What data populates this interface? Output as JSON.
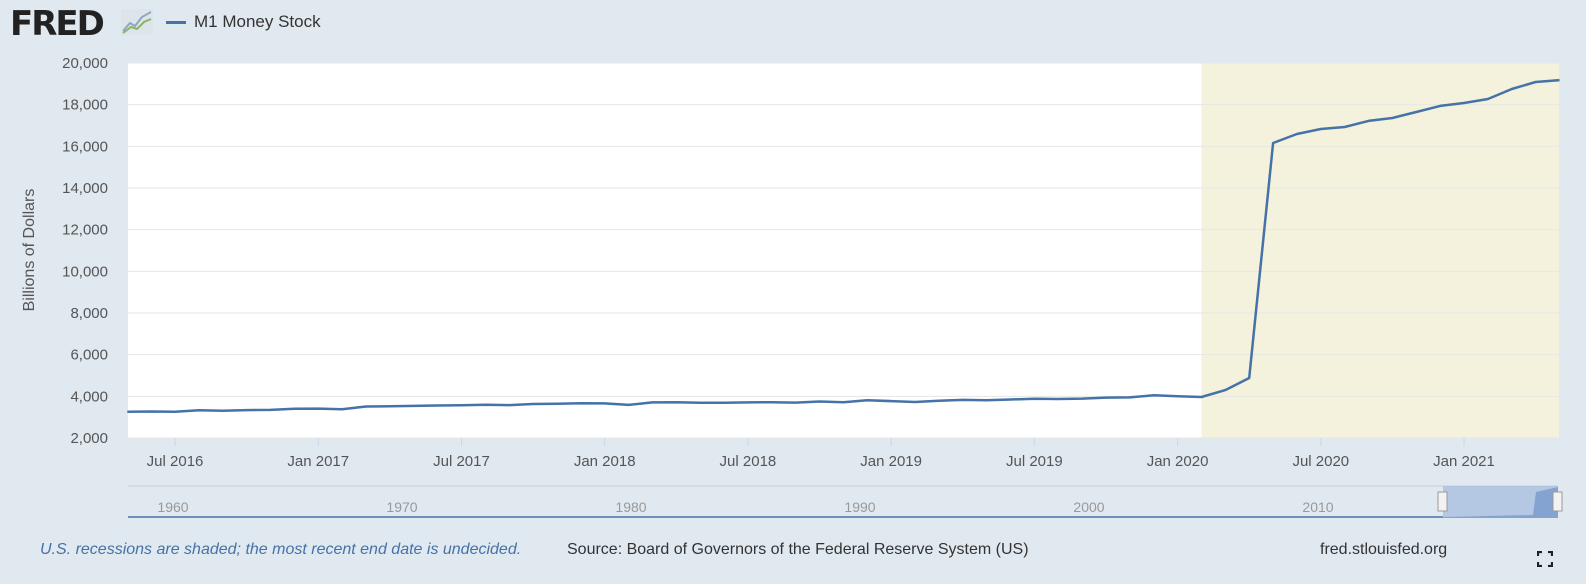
{
  "header": {
    "logo": "FRED",
    "logo_icon": "chart-line-icon",
    "legend": "M1 Money Stock"
  },
  "footer": {
    "note": "U.S. recessions are shaded; the most recent end date is undecided.",
    "source": "Source: Board of Governors of the Federal Reserve System (US)",
    "site": "fred.stlouisfed.org",
    "fullscreen_icon": "fullscreen-icon"
  },
  "colors": {
    "line": "#4572a7",
    "recession": "#f4f2dc",
    "background": "#e1e9f0"
  },
  "chart_data": {
    "type": "line",
    "title": "M1 Money Stock",
    "ylabel": "Billions of Dollars",
    "xlabel": "",
    "ylim": [
      2000,
      20000
    ],
    "yticks": [
      "2,000",
      "4,000",
      "6,000",
      "8,000",
      "10,000",
      "12,000",
      "14,000",
      "16,000",
      "18,000",
      "20,000"
    ],
    "ytick_values": [
      2000,
      4000,
      6000,
      8000,
      10000,
      12000,
      14000,
      16000,
      18000,
      20000
    ],
    "x_start": "2016-05",
    "x_end": "2021-05",
    "frequency": "monthly",
    "xticks": [
      {
        "label": "Jul 2016",
        "month_index": 2
      },
      {
        "label": "Jan 2017",
        "month_index": 8
      },
      {
        "label": "Jul 2017",
        "month_index": 14
      },
      {
        "label": "Jan 2018",
        "month_index": 20
      },
      {
        "label": "Jul 2018",
        "month_index": 26
      },
      {
        "label": "Jan 2019",
        "month_index": 32
      },
      {
        "label": "Jul 2019",
        "month_index": 38
      },
      {
        "label": "Jan 2020",
        "month_index": 44
      },
      {
        "label": "Jul 2020",
        "month_index": 50
      },
      {
        "label": "Jan 2021",
        "month_index": 56
      }
    ],
    "recession": {
      "start_month_index": 45,
      "end": "undecided"
    },
    "series": [
      {
        "name": "M1 Money Stock",
        "values": [
          3260,
          3270,
          3260,
          3330,
          3310,
          3340,
          3350,
          3400,
          3410,
          3380,
          3510,
          3520,
          3540,
          3560,
          3570,
          3600,
          3580,
          3630,
          3640,
          3670,
          3660,
          3590,
          3710,
          3720,
          3690,
          3690,
          3710,
          3720,
          3700,
          3750,
          3720,
          3810,
          3770,
          3730,
          3790,
          3830,
          3810,
          3850,
          3880,
          3870,
          3890,
          3940,
          3950,
          4050,
          4000,
          3970,
          4300,
          4880,
          16160,
          16590,
          16830,
          16930,
          17220,
          17360,
          17650,
          17940,
          18080,
          18270,
          18750,
          19090,
          19180
        ]
      }
    ],
    "navigator": {
      "labels": [
        "1960",
        "1970",
        "1980",
        "1990",
        "2000",
        "2010"
      ],
      "label_years": [
        1960,
        1970,
        1980,
        1990,
        2000,
        2010
      ]
    }
  }
}
